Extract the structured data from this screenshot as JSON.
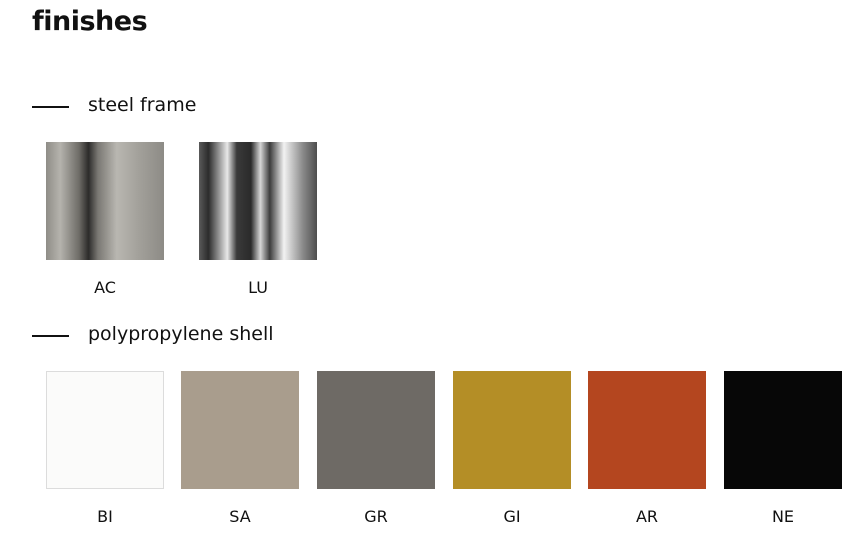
{
  "header": {
    "title": "finishes"
  },
  "sections": [
    {
      "label": "steel frame",
      "swatches": [
        {
          "code": "AC",
          "color": "linear-gradient(90deg,#8f8d87 0%,#b5b3ad 12%,#6e6c67 28%,#2c2b2a 36%,#7a7873 44%,#b9b7b1 60%,#a3a19b 78%,#8d8b86 100%)"
        },
        {
          "code": "LU",
          "color": "linear-gradient(90deg,#5a5a5a 0%,#2c2c2c 8%,#e8e8e8 24%,#3a3a3a 32%,#2a2a2a 44%,#d6d6d6 52%,#3c3c3c 60%,#f2f2f2 72%,#8a8a8a 88%,#4e4e4e 100%)"
        }
      ]
    },
    {
      "label": "polypropylene shell",
      "swatches": [
        {
          "code": "BI",
          "color": "#fbfbfa"
        },
        {
          "code": "SA",
          "color": "#a99d8d"
        },
        {
          "code": "GR",
          "color": "#6e6a65"
        },
        {
          "code": "GI",
          "color": "#b48e26"
        },
        {
          "code": "AR",
          "color": "#b4461f"
        },
        {
          "code": "NE",
          "color": "#070707"
        }
      ]
    }
  ]
}
